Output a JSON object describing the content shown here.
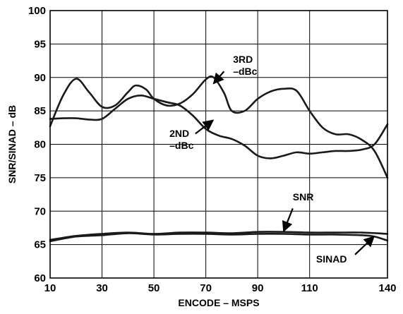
{
  "chart_data": {
    "type": "line",
    "title": "",
    "xlabel": "ENCODE – MSPS",
    "ylabel": "SNR/SINAD – dB",
    "xlim": [
      10,
      140
    ],
    "ylim": [
      60,
      100
    ],
    "xticks": [
      10,
      30,
      50,
      70,
      90,
      110,
      140
    ],
    "yticks": [
      60,
      65,
      70,
      75,
      80,
      85,
      90,
      95,
      100
    ],
    "grid": true,
    "line_color": "#1a1a1a",
    "series": [
      {
        "id": "third",
        "x": [
          10,
          15,
          20,
          25,
          30,
          35,
          40,
          43,
          47,
          50,
          55,
          60,
          65,
          70,
          73,
          77,
          80,
          85,
          90,
          95,
          100,
          105,
          110,
          115,
          120,
          125,
          130,
          135,
          140
        ],
        "y": [
          82.7,
          87.3,
          89.8,
          87.8,
          85.6,
          85.8,
          87.8,
          88.8,
          88.2,
          86.8,
          85.8,
          86.1,
          87.5,
          89.7,
          90.0,
          87.7,
          85.0,
          85.0,
          86.8,
          87.9,
          88.3,
          88.0,
          85.0,
          82.5,
          81.5,
          81.5,
          80.7,
          79.0,
          75.0
        ]
      },
      {
        "id": "second",
        "x": [
          10,
          15,
          20,
          25,
          30,
          35,
          40,
          45,
          50,
          55,
          60,
          65,
          70,
          75,
          80,
          85,
          90,
          95,
          100,
          105,
          110,
          115,
          120,
          125,
          130,
          135,
          140
        ],
        "y": [
          83.8,
          83.9,
          83.9,
          83.7,
          83.8,
          85.3,
          86.8,
          87.3,
          86.8,
          86.3,
          85.8,
          84.3,
          82.3,
          81.3,
          80.8,
          79.8,
          78.3,
          77.9,
          78.3,
          78.8,
          78.6,
          78.8,
          79.0,
          79.0,
          79.2,
          80.0,
          83.0
        ]
      },
      {
        "id": "snr",
        "x": [
          10,
          20,
          30,
          40,
          50,
          60,
          70,
          80,
          90,
          100,
          110,
          120,
          130,
          140
        ],
        "y": [
          65.7,
          66.3,
          66.6,
          66.8,
          66.6,
          66.8,
          66.8,
          66.7,
          66.9,
          66.9,
          66.8,
          66.8,
          66.8,
          66.6
        ]
      },
      {
        "id": "sinad",
        "x": [
          10,
          20,
          30,
          40,
          50,
          60,
          70,
          80,
          90,
          100,
          110,
          120,
          130,
          135,
          140
        ],
        "y": [
          65.5,
          66.2,
          66.4,
          66.7,
          66.5,
          66.6,
          66.6,
          66.5,
          66.6,
          66.6,
          66.5,
          66.5,
          66.4,
          66.2,
          65.6
        ]
      }
    ],
    "annotations": [
      {
        "id": "ann-3rd",
        "lines": [
          "3RD",
          "–dBc"
        ],
        "anchor": "start",
        "at": [
          80.5,
          92.2
        ],
        "arrow_from": [
          77.0,
          90.9
        ],
        "arrow_to": [
          73.0,
          89.1
        ]
      },
      {
        "id": "ann-2nd",
        "lines": [
          "2ND",
          "–dBc"
        ],
        "anchor": "start",
        "at": [
          56.0,
          81.1
        ],
        "arrow_from": [
          66.0,
          81.6
        ],
        "arrow_to": [
          72.8,
          83.6
        ]
      },
      {
        "id": "ann-snr",
        "lines": [
          "SNR"
        ],
        "anchor": "start",
        "at": [
          103.5,
          71.6
        ],
        "arrow_from": [
          103.5,
          70.4
        ],
        "arrow_to": [
          100.0,
          67.0
        ]
      },
      {
        "id": "ann-sinad",
        "lines": [
          "SINAD"
        ],
        "anchor": "start",
        "at": [
          112.5,
          62.3
        ],
        "arrow_from": [
          127.5,
          63.5
        ],
        "arrow_to": [
          134.8,
          66.2
        ]
      }
    ]
  }
}
